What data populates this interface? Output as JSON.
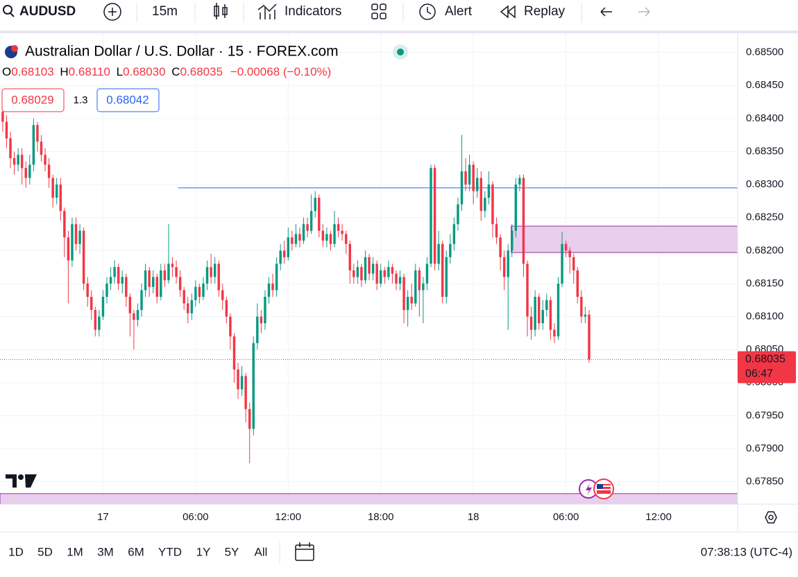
{
  "toolbar": {
    "symbol": "AUDUSD",
    "interval": "15m",
    "indicators": "Indicators",
    "alert": "Alert",
    "replay": "Replay"
  },
  "legend": {
    "title": "Australian Dollar / U.S. Dollar · 15 · FOREX.com",
    "o_label": "O",
    "o": 0.68103,
    "h_label": "H",
    "h": 0.6811,
    "h_text": "0.68110",
    "l_label": "L",
    "l": 0.6803,
    "l_text": "0.68030",
    "c_label": "C",
    "c": 0.68035,
    "change": "−0.00068 (−0.10%)"
  },
  "trade": {
    "sell": 0.68029,
    "spread": 1.3,
    "buy": 0.68042
  },
  "range_bar": {
    "ranges": [
      "1D",
      "5D",
      "1M",
      "3M",
      "6M",
      "YTD",
      "1Y",
      "5Y",
      "All"
    ],
    "clock": "07:38:13 (UTC-4)"
  },
  "chart_data": {
    "type": "candlestick",
    "up_color": "#089981",
    "down_color": "#f23645",
    "xlim": [
      -0.7,
      190.5
    ],
    "xticks": [
      {
        "value": 26,
        "label": "17"
      },
      {
        "value": 50,
        "label": "06:00"
      },
      {
        "value": 74,
        "label": "12:00"
      },
      {
        "value": 98,
        "label": "18:00"
      },
      {
        "value": 122,
        "label": "18"
      },
      {
        "value": 146,
        "label": "06:00"
      },
      {
        "value": 170,
        "label": "12:00"
      }
    ],
    "ylim": [
      0.67816,
      0.68529
    ],
    "yticks": [
      {
        "value": 0.685,
        "label": "0.68500"
      },
      {
        "value": 0.6845,
        "label": "0.68450"
      },
      {
        "value": 0.684,
        "label": "0.68400"
      },
      {
        "value": 0.6835,
        "label": "0.68350"
      },
      {
        "value": 0.683,
        "label": "0.68300"
      },
      {
        "value": 0.6825,
        "label": "0.68250"
      },
      {
        "value": 0.682,
        "label": "0.68200"
      },
      {
        "value": 0.6815,
        "label": "0.68150"
      },
      {
        "value": 0.681,
        "label": "0.68100"
      },
      {
        "value": 0.6805,
        "label": "0.68050"
      },
      {
        "value": 0.68,
        "label": "0.68000"
      },
      {
        "value": 0.6795,
        "label": "0.67950"
      },
      {
        "value": 0.679,
        "label": "0.67900"
      },
      {
        "value": 0.6785,
        "label": "0.67850"
      }
    ],
    "grid": true,
    "open": [
      0.6841,
      0.68395,
      0.6837,
      0.6834,
      0.6833,
      0.68345,
      0.68325,
      0.6831,
      0.6833,
      0.6839,
      0.68365,
      0.68345,
      0.6833,
      0.6831,
      0.6828,
      0.683,
      0.6826,
      0.6822,
      0.68185,
      0.6824,
      0.6821,
      0.6823,
      0.6815,
      0.6813,
      0.6811,
      0.6808,
      0.681,
      0.6813,
      0.6815,
      0.6816,
      0.68175,
      0.6815,
      0.6816,
      0.6813,
      0.68105,
      0.68095,
      0.6811,
      0.6814,
      0.6817,
      0.68145,
      0.6816,
      0.6813,
      0.6817,
      0.68155,
      0.6818,
      0.68175,
      0.6816,
      0.6814,
      0.6812,
      0.68105,
      0.68125,
      0.68145,
      0.6813,
      0.6815,
      0.68175,
      0.6816,
      0.6818,
      0.6814,
      0.68125,
      0.681,
      0.6807,
      0.6802,
      0.6799,
      0.6801,
      0.6796,
      0.6793,
      0.6806,
      0.681,
      0.6809,
      0.6813,
      0.6815,
      0.6814,
      0.6818,
      0.682,
      0.6819,
      0.6822,
      0.6821,
      0.68225,
      0.68215,
      0.6824,
      0.6823,
      0.6826,
      0.6828,
      0.6823,
      0.68215,
      0.68225,
      0.6821,
      0.6824,
      0.6823,
      0.68225,
      0.6821,
      0.6817,
      0.6816,
      0.68175,
      0.68155,
      0.6819,
      0.68165,
      0.6818,
      0.6815,
      0.6817,
      0.6816,
      0.68175,
      0.68165,
      0.6815,
      0.6816,
      0.6811,
      0.6813,
      0.6812,
      0.6817,
      0.6814,
      0.6815,
      0.6818,
      0.68325,
      0.6818,
      0.6821,
      0.6813,
      0.6819,
      0.6821,
      0.6824,
      0.6827,
      0.6832,
      0.683,
      0.6833,
      0.6829,
      0.6831,
      0.6826,
      0.6828,
      0.683,
      0.6824,
      0.6822,
      0.6819,
      0.6816,
      0.682,
      0.6823,
      0.683,
      0.6831,
      0.6818,
      0.681,
      0.6808,
      0.6813,
      0.6809,
      0.6811,
      0.68125,
      0.6808,
      0.6807,
      0.6815,
      0.6821,
      0.682,
      0.6819,
      0.6817,
      0.6813,
      0.681,
      0.68103
    ],
    "high": [
      0.68425,
      0.68405,
      0.6838,
      0.6835,
      0.68355,
      0.68355,
      0.68335,
      0.68345,
      0.684,
      0.68395,
      0.68375,
      0.68355,
      0.6834,
      0.68315,
      0.6831,
      0.6831,
      0.68265,
      0.6823,
      0.6825,
      0.6825,
      0.6824,
      0.68235,
      0.6816,
      0.6814,
      0.68115,
      0.6811,
      0.6814,
      0.6816,
      0.68175,
      0.68185,
      0.6818,
      0.6817,
      0.68165,
      0.68135,
      0.6811,
      0.6812,
      0.6815,
      0.6818,
      0.68175,
      0.6817,
      0.68165,
      0.6818,
      0.6818,
      0.6824,
      0.6819,
      0.68185,
      0.6817,
      0.68145,
      0.6813,
      0.68135,
      0.68155,
      0.6815,
      0.6816,
      0.68185,
      0.68195,
      0.6819,
      0.68185,
      0.6815,
      0.6813,
      0.68105,
      0.68075,
      0.6803,
      0.68025,
      0.68015,
      0.6797,
      0.6807,
      0.6812,
      0.6811,
      0.6814,
      0.6816,
      0.68165,
      0.6819,
      0.6821,
      0.68215,
      0.68235,
      0.6823,
      0.6824,
      0.68235,
      0.6825,
      0.6825,
      0.68285,
      0.6829,
      0.68285,
      0.6824,
      0.68235,
      0.6823,
      0.6826,
      0.6825,
      0.6824,
      0.6823,
      0.68215,
      0.6818,
      0.68185,
      0.6818,
      0.682,
      0.68195,
      0.6819,
      0.68185,
      0.6818,
      0.68175,
      0.68185,
      0.6818,
      0.6817,
      0.6817,
      0.68165,
      0.6814,
      0.6815,
      0.6818,
      0.68175,
      0.6816,
      0.6819,
      0.6833,
      0.6833,
      0.6823,
      0.68215,
      0.682,
      0.68225,
      0.6825,
      0.6828,
      0.68375,
      0.6834,
      0.68345,
      0.68335,
      0.68325,
      0.6832,
      0.6829,
      0.6832,
      0.68305,
      0.6825,
      0.68225,
      0.682,
      0.6821,
      0.6824,
      0.6831,
      0.68315,
      0.68315,
      0.68185,
      0.68115,
      0.6814,
      0.68135,
      0.68125,
      0.68135,
      0.6813,
      0.6809,
      0.6816,
      0.68228,
      0.68215,
      0.68205,
      0.68195,
      0.68175,
      0.6814,
      0.68115,
      0.6811
    ],
    "low": [
      0.6838,
      0.68355,
      0.68325,
      0.68315,
      0.6832,
      0.683,
      0.68295,
      0.683,
      0.6832,
      0.6835,
      0.68335,
      0.6832,
      0.68295,
      0.68265,
      0.6827,
      0.68245,
      0.6819,
      0.6812,
      0.68175,
      0.682,
      0.68195,
      0.6814,
      0.68115,
      0.68095,
      0.6807,
      0.6807,
      0.68095,
      0.6812,
      0.6814,
      0.6815,
      0.6814,
      0.68135,
      0.68115,
      0.6807,
      0.6805,
      0.68085,
      0.681,
      0.6813,
      0.6813,
      0.68135,
      0.6812,
      0.68125,
      0.68145,
      0.6815,
      0.6816,
      0.6815,
      0.6813,
      0.6811,
      0.6809,
      0.68095,
      0.68115,
      0.6812,
      0.68125,
      0.6814,
      0.6815,
      0.6815,
      0.6813,
      0.6811,
      0.6809,
      0.6805,
      0.68,
      0.67975,
      0.6798,
      0.6794,
      0.67878,
      0.6792,
      0.6805,
      0.68075,
      0.6808,
      0.6812,
      0.6813,
      0.6813,
      0.6817,
      0.6818,
      0.68185,
      0.682,
      0.68205,
      0.68205,
      0.6821,
      0.6822,
      0.68225,
      0.6825,
      0.6822,
      0.68205,
      0.68205,
      0.682,
      0.68205,
      0.6822,
      0.68215,
      0.68195,
      0.6815,
      0.6815,
      0.6815,
      0.68145,
      0.6815,
      0.68155,
      0.68155,
      0.6814,
      0.68145,
      0.6815,
      0.68155,
      0.6815,
      0.6814,
      0.6814,
      0.6809,
      0.68085,
      0.6811,
      0.68115,
      0.681,
      0.6809,
      0.6814,
      0.68175,
      0.6817,
      0.6817,
      0.6812,
      0.6812,
      0.6818,
      0.682,
      0.6823,
      0.6826,
      0.6829,
      0.6829,
      0.6827,
      0.6828,
      0.68245,
      0.6825,
      0.6827,
      0.6822,
      0.6821,
      0.6817,
      0.6814,
      0.6808,
      0.6819,
      0.6822,
      0.6829,
      0.6816,
      0.6807,
      0.68065,
      0.6807,
      0.6808,
      0.6808,
      0.681,
      0.68065,
      0.6806,
      0.68065,
      0.68145,
      0.6819,
      0.68165,
      0.6815,
      0.6812,
      0.6809,
      0.6809,
      0.6803
    ],
    "close": [
      0.68395,
      0.6837,
      0.6834,
      0.6833,
      0.68345,
      0.68325,
      0.6831,
      0.6833,
      0.6839,
      0.68365,
      0.68345,
      0.6833,
      0.6831,
      0.6828,
      0.683,
      0.6826,
      0.6822,
      0.68185,
      0.6824,
      0.6821,
      0.6823,
      0.6815,
      0.6813,
      0.6811,
      0.6808,
      0.681,
      0.6813,
      0.6815,
      0.6816,
      0.68175,
      0.6815,
      0.6816,
      0.6813,
      0.68105,
      0.68095,
      0.6811,
      0.6814,
      0.6817,
      0.68145,
      0.6816,
      0.6813,
      0.6817,
      0.68155,
      0.6818,
      0.68175,
      0.6816,
      0.6814,
      0.6812,
      0.68105,
      0.68125,
      0.68145,
      0.6813,
      0.6815,
      0.68175,
      0.6816,
      0.6818,
      0.6814,
      0.68125,
      0.681,
      0.6807,
      0.6802,
      0.6799,
      0.6801,
      0.6796,
      0.6793,
      0.6806,
      0.681,
      0.6809,
      0.6813,
      0.6815,
      0.6814,
      0.6818,
      0.682,
      0.6819,
      0.6822,
      0.6821,
      0.68225,
      0.68215,
      0.6824,
      0.6823,
      0.6826,
      0.6828,
      0.6823,
      0.68215,
      0.68225,
      0.6821,
      0.6824,
      0.6823,
      0.68225,
      0.6821,
      0.6817,
      0.6816,
      0.68175,
      0.68155,
      0.6819,
      0.68165,
      0.6818,
      0.6815,
      0.6817,
      0.6816,
      0.68175,
      0.68165,
      0.6815,
      0.6816,
      0.6811,
      0.6813,
      0.6812,
      0.6817,
      0.6814,
      0.6815,
      0.6818,
      0.68325,
      0.6818,
      0.6821,
      0.6813,
      0.6819,
      0.6821,
      0.6824,
      0.6827,
      0.6832,
      0.683,
      0.6833,
      0.6829,
      0.6831,
      0.6826,
      0.6828,
      0.683,
      0.6824,
      0.6822,
      0.6819,
      0.6816,
      0.682,
      0.6823,
      0.683,
      0.6831,
      0.6818,
      0.681,
      0.6808,
      0.6813,
      0.6809,
      0.6811,
      0.68125,
      0.6808,
      0.6807,
      0.6815,
      0.6821,
      0.682,
      0.6819,
      0.6817,
      0.6813,
      0.681,
      0.68103,
      0.68035
    ],
    "hline": {
      "value": 0.68295,
      "start": 45.5,
      "color": "#2962ff"
    },
    "zones": [
      {
        "from": 0.68197,
        "to": 0.68237,
        "start": 131.8,
        "color": "#e1bee7",
        "edge": "#9c27b0"
      },
      {
        "from": 0.678,
        "to": 0.67832,
        "start": -0.7,
        "color": "#e1bee7",
        "edge": "#9c27b0"
      }
    ],
    "last_price": 0.68035,
    "countdown": "06:47"
  }
}
